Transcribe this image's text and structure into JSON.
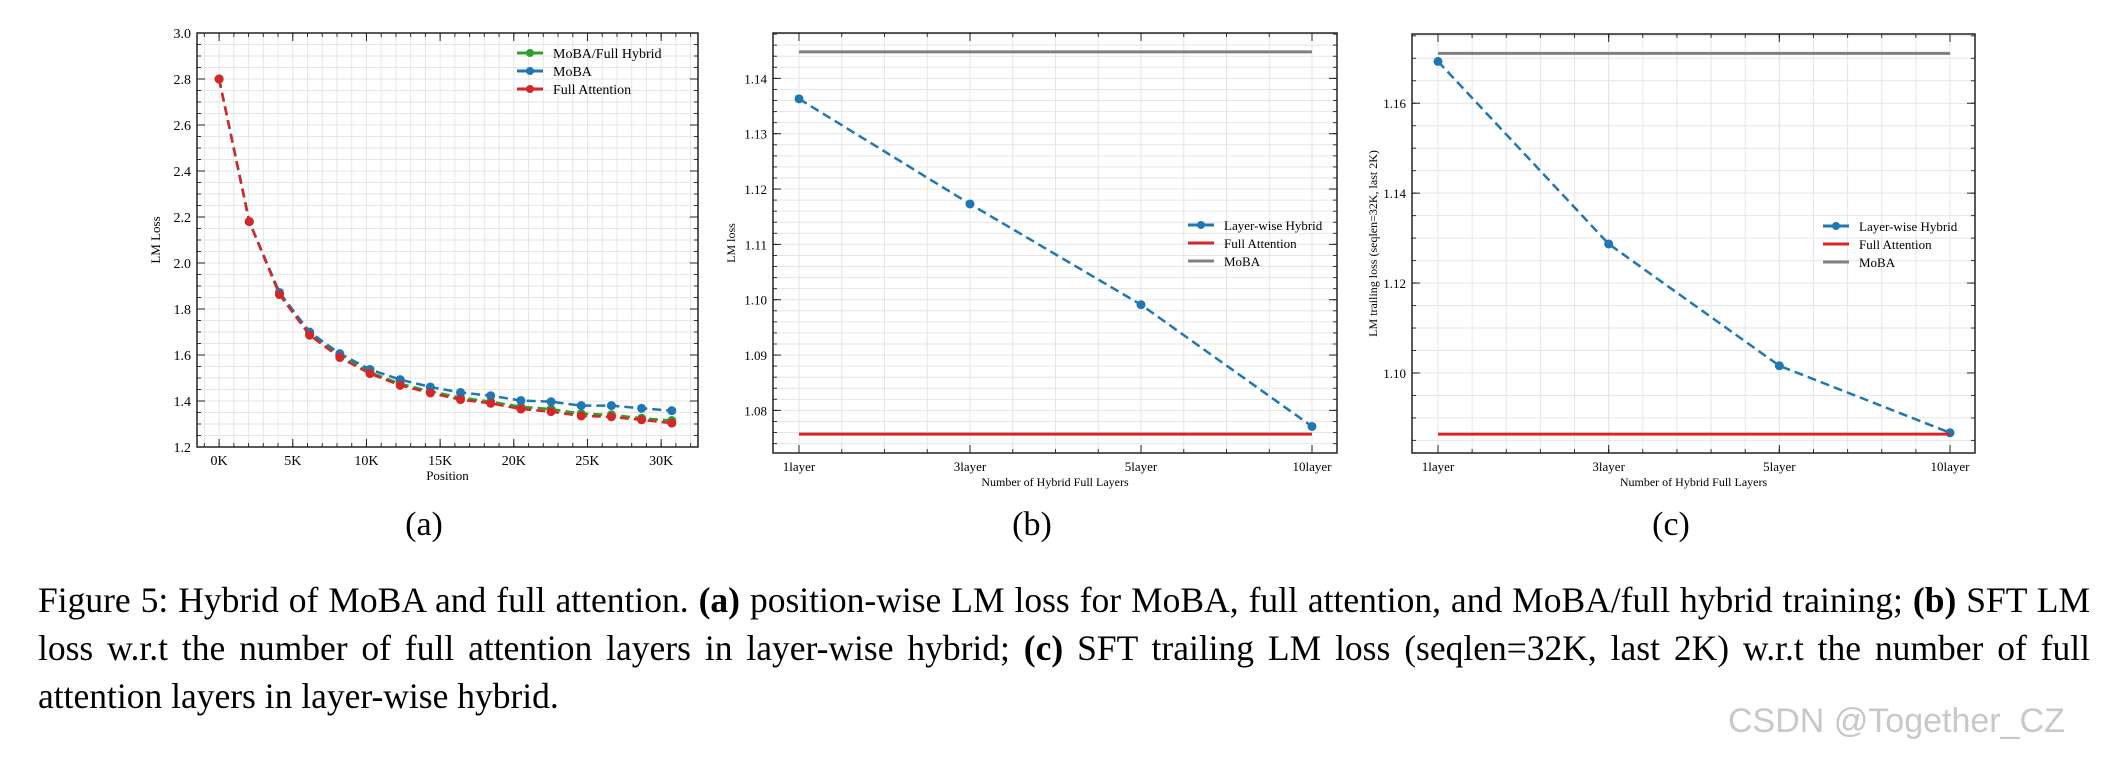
{
  "chart_data": [
    {
      "type": "line",
      "xlabel": "Position",
      "ylabel": "LM Loss",
      "xlim": [
        -1500,
        32500
      ],
      "ylim": [
        1.2,
        3.0
      ],
      "xticks": [
        0,
        5000,
        10000,
        15000,
        20000,
        25000,
        30000
      ],
      "xtick_labels": [
        "0K",
        "5K",
        "10K",
        "15K",
        "20K",
        "25K",
        "30K"
      ],
      "yticks": [
        1.2,
        1.4,
        1.6,
        1.8,
        2.0,
        2.2,
        2.4,
        2.6,
        2.8,
        3.0
      ],
      "ytick_labels": [
        "1.2",
        "1.4",
        "1.6",
        "1.8",
        "2.0",
        "2.2",
        "2.4",
        "2.6",
        "2.8",
        "3.0"
      ],
      "grid": true,
      "legend_placement": "top-right",
      "x": [
        0,
        2048,
        4096,
        6144,
        8192,
        10240,
        12288,
        14336,
        16384,
        18432,
        20480,
        22528,
        24576,
        26624,
        28672,
        30720
      ],
      "series": [
        {
          "name": "MoBA/Full Hybrid",
          "color": "#2ca02c",
          "style": "dashed-marker",
          "values": [
            2.8,
            2.18,
            1.867,
            1.69,
            1.595,
            1.525,
            1.475,
            1.442,
            1.415,
            1.397,
            1.375,
            1.365,
            1.345,
            1.34,
            1.325,
            1.315
          ]
        },
        {
          "name": "MoBA",
          "color": "#1f77b4",
          "style": "dashed-marker",
          "values": [
            2.8,
            2.18,
            1.872,
            1.7,
            1.606,
            1.537,
            1.493,
            1.461,
            1.437,
            1.423,
            1.402,
            1.397,
            1.38,
            1.38,
            1.368,
            1.358
          ]
        },
        {
          "name": "Full Attention",
          "color": "#d62728",
          "style": "dashed-marker",
          "values": [
            2.8,
            2.18,
            1.863,
            1.686,
            1.589,
            1.519,
            1.468,
            1.435,
            1.406,
            1.39,
            1.365,
            1.354,
            1.335,
            1.331,
            1.318,
            1.304
          ]
        }
      ]
    },
    {
      "type": "line",
      "xlabel": "Number of Hybrid Full Layers",
      "ylabel": "LM loss",
      "categories": [
        "1layer",
        "3layer",
        "5layer",
        "10layer"
      ],
      "ylim": [
        1.0723,
        1.1482
      ],
      "yticks": [
        1.08,
        1.09,
        1.1,
        1.11,
        1.12,
        1.13,
        1.14
      ],
      "ytick_labels": [
        "1.08",
        "1.09",
        "1.10",
        "1.11",
        "1.12",
        "1.13",
        "1.14"
      ],
      "grid": true,
      "legend_placement": "center-right",
      "series": [
        {
          "name": "Layer-wise Hybrid",
          "color": "#1f77b4",
          "style": "dashed-marker",
          "values": [
            1.1363,
            1.1173,
            1.0991,
            1.0771
          ]
        },
        {
          "name": "Full Attention",
          "color": "#d62728",
          "style": "solid",
          "values": [
            1.0757,
            1.0757,
            1.0757,
            1.0757
          ]
        },
        {
          "name": "MoBA",
          "color": "#808080",
          "style": "solid",
          "values": [
            1.1448,
            1.1448,
            1.1448,
            1.1448
          ]
        }
      ]
    },
    {
      "type": "line",
      "xlabel": "Number of Hybrid Full Layers",
      "ylabel": "LM trailing loss (seqlen=32K, last 2K)",
      "categories": [
        "1layer",
        "3layer",
        "5layer",
        "10layer"
      ],
      "ylim": [
        1.0822,
        1.1754
      ],
      "yticks": [
        1.1,
        1.12,
        1.14,
        1.16
      ],
      "ytick_labels": [
        "1.10",
        "1.12",
        "1.14",
        "1.16"
      ],
      "grid": true,
      "legend_placement": "center-right",
      "series": [
        {
          "name": "Layer-wise Hybrid",
          "color": "#1f77b4",
          "style": "dashed-marker",
          "values": [
            1.1693,
            1.1287,
            1.1016,
            1.0867
          ]
        },
        {
          "name": "Full Attention",
          "color": "#d62728",
          "style": "solid",
          "values": [
            1.0864,
            1.0864,
            1.0864,
            1.0864
          ]
        },
        {
          "name": "MoBA",
          "color": "#808080",
          "style": "solid",
          "values": [
            1.1711,
            1.1711,
            1.1711,
            1.1711
          ]
        }
      ]
    }
  ],
  "subfigure_labels": [
    "(a)",
    "(b)",
    "(c)"
  ],
  "caption": {
    "p1": "Figure 5: Hybrid of MoBA and full attention. ",
    "a": "(a)",
    "p2": " position-wise LM loss for MoBA, full attention, and MoBA/full hybrid training; ",
    "b": "(b)",
    "p3": " SFT LM loss w.r.t the number of full attention layers in layer-wise hybrid; ",
    "c": "(c)",
    "p4": " SFT trailing LM loss (seqlen=32K, last 2K) w.r.t the number of full attention layers in layer-wise hybrid."
  },
  "watermark": "CSDN @Together_CZ"
}
